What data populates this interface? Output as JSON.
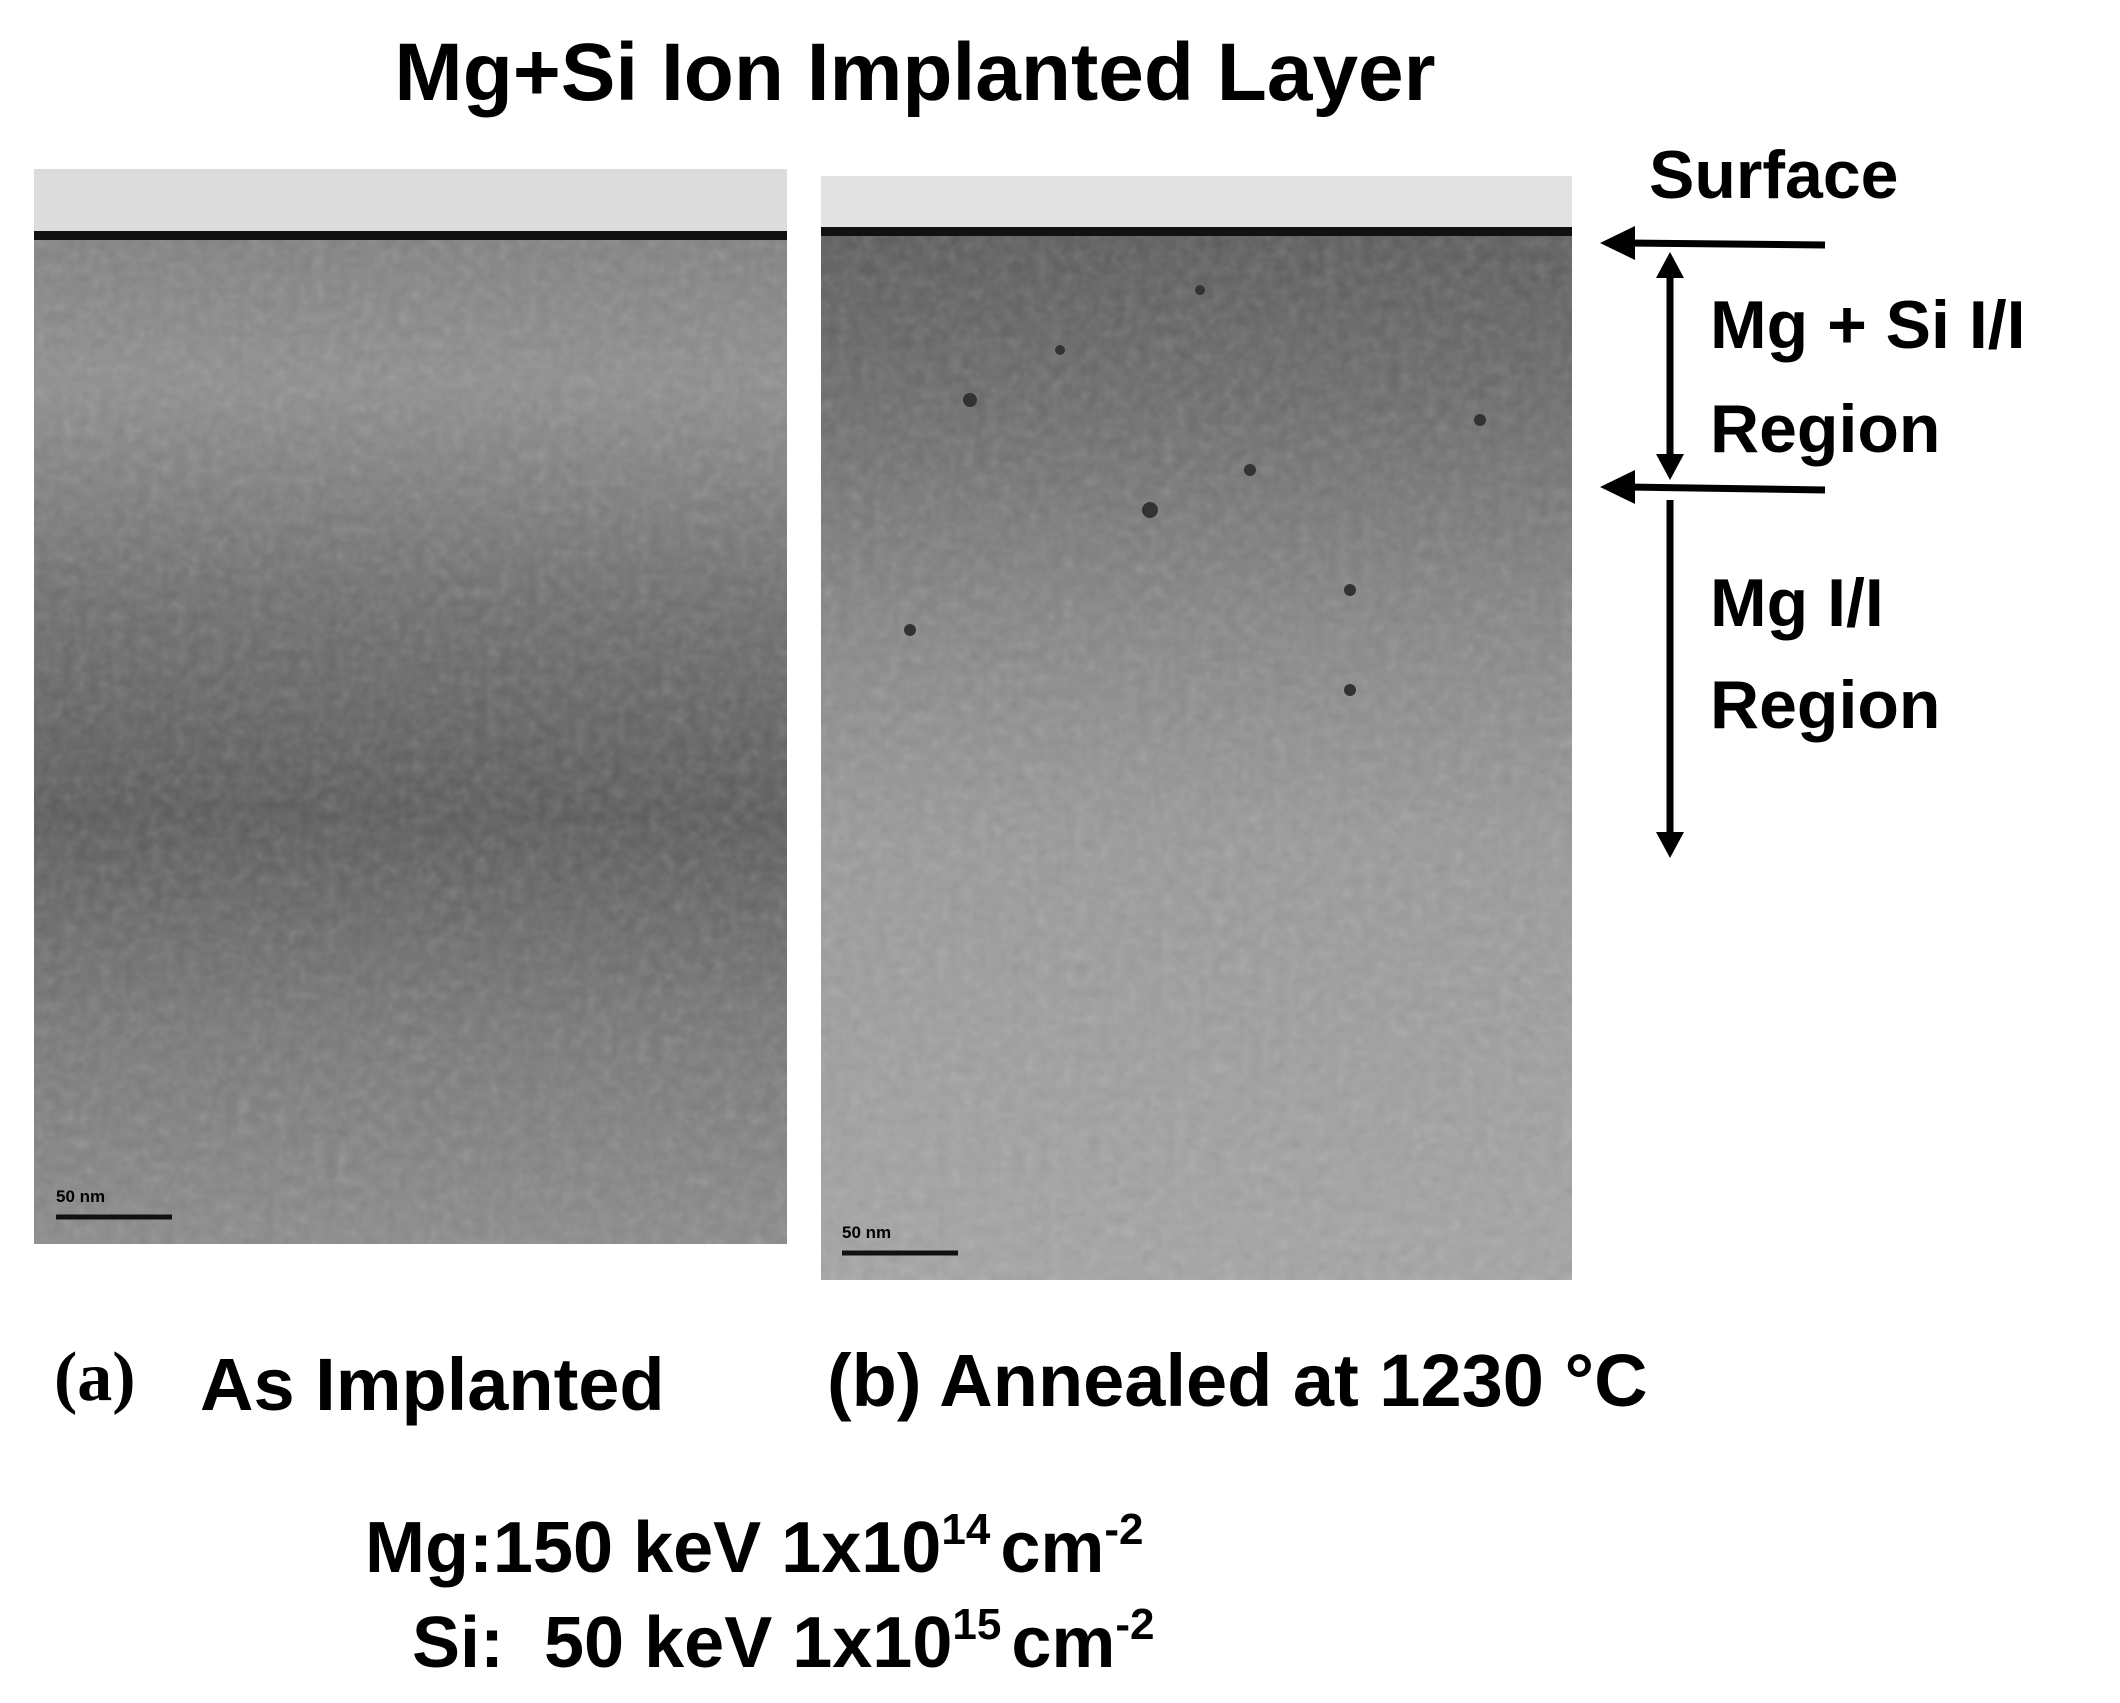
{
  "title": "Mg+Si Ion Implanted Layer",
  "panels": [
    {
      "label": "(a)",
      "caption": "As Implanted",
      "scale_bar": "50 nm"
    },
    {
      "caption": "(b) Annealed at 1230 °C",
      "scale_bar": "50 nm"
    }
  ],
  "annotations": {
    "surface": "Surface",
    "mg_si_region": [
      "Mg + Si I/I",
      "Region"
    ],
    "mg_region": [
      "Mg I/I",
      "Region"
    ]
  },
  "conditions": [
    {
      "prefix": "Mg:150 keV 1x10",
      "exponent": "14",
      "unit": "cm",
      "unit_exponent": "-2"
    },
    {
      "prefix": "Si:  50 keV 1x10",
      "exponent": "15",
      "unit": "cm",
      "unit_exponent": "-2"
    }
  ]
}
